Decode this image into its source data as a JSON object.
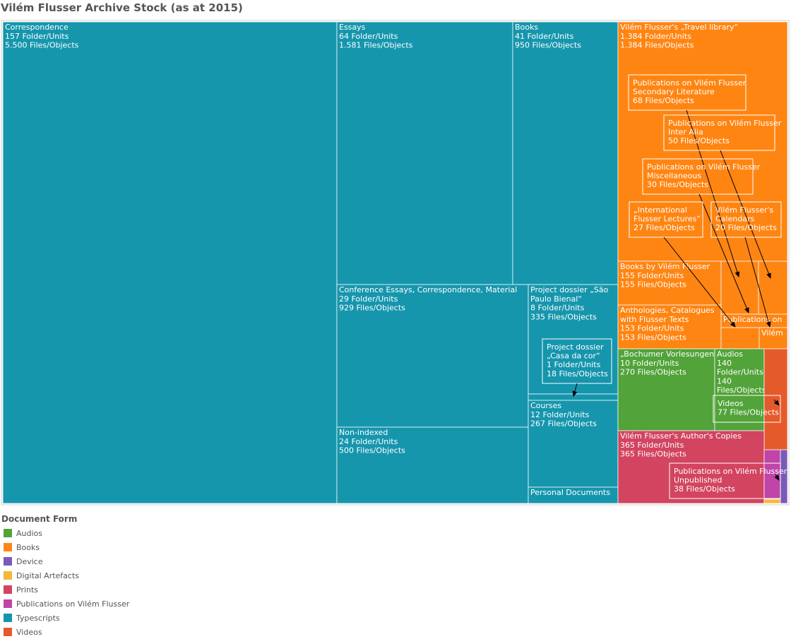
{
  "chart_data": {
    "type": "treemap",
    "title": "Vilém Flusser Archive Stock (as at 2015)",
    "legend": {
      "title": "Document Form",
      "placement": "bottom-left",
      "items": [
        {
          "name": "Audios",
          "color": "#52A33A"
        },
        {
          "name": "Books",
          "color": "#FF8513"
        },
        {
          "name": "Device",
          "color": "#7A5AB8"
        },
        {
          "name": "Digital Artefacts",
          "color": "#F3B83C"
        },
        {
          "name": "Prints",
          "color": "#D24460"
        },
        {
          "name": "Publications on Vilém Flusser",
          "color": "#C045A8"
        },
        {
          "name": "Typescripts",
          "color": "#1696AD"
        },
        {
          "name": "Videos",
          "color": "#E55A2B"
        }
      ]
    },
    "nodes": [
      {
        "id": "correspondence",
        "category": "Typescripts",
        "lines": [
          "Correspondence",
          "157 Folder/Units",
          "5.500 Files/Objects"
        ]
      },
      {
        "id": "essays",
        "category": "Typescripts",
        "lines": [
          "Essays",
          "64 Folder/Units",
          "1.581 Files/Objects"
        ]
      },
      {
        "id": "books-ts",
        "category": "Typescripts",
        "lines": [
          "Books",
          "41 Folder/Units",
          "950 Files/Objects"
        ]
      },
      {
        "id": "conference",
        "category": "Typescripts",
        "lines": [
          "Conference Essays, Correspondence, Material",
          "29 Folder/Units",
          "929 Files/Objects"
        ]
      },
      {
        "id": "sao-paulo",
        "category": "Typescripts",
        "lines": [
          "Project dossier „São",
          "Paulo Bienal“",
          "8 Folder/Units",
          "335 Files/Objects"
        ]
      },
      {
        "id": "casa-da-cor",
        "category": "Typescripts",
        "lines": []
      },
      {
        "id": "non-indexed",
        "category": "Typescripts",
        "lines": [
          "Non-indexed",
          "24 Folder/Units",
          "500 Files/Objects"
        ]
      },
      {
        "id": "courses",
        "category": "Typescripts",
        "lines": [
          "Courses",
          "12 Folder/Units",
          "267 Files/Objects"
        ]
      },
      {
        "id": "personal-docs",
        "category": "Typescripts",
        "lines": [
          "Personal Documents"
        ]
      },
      {
        "id": "travel-library",
        "category": "Books",
        "lines": [
          "Vilém Flusser's „Travel library“",
          "1.384 Folder/Units",
          "1.384 Files/Objects"
        ]
      },
      {
        "id": "books-by",
        "category": "Books",
        "lines": [
          "Books by Vilém Flusser",
          "155 Folder/Units",
          "155 Files/Objects"
        ]
      },
      {
        "id": "books-sm1",
        "category": "Books",
        "lines": []
      },
      {
        "id": "books-sm2",
        "category": "Books",
        "lines": []
      },
      {
        "id": "anthologies",
        "category": "Books",
        "lines": [
          "Anthologies, Catalogues",
          "with Flusser Texts",
          "153 Folder/Units",
          "153 Files/Objects"
        ]
      },
      {
        "id": "publications-on",
        "category": "Books",
        "lines": [
          "Publications on"
        ]
      },
      {
        "id": "books-sm3",
        "category": "Books",
        "lines": []
      },
      {
        "id": "books-sm4",
        "category": "Books",
        "lines": []
      },
      {
        "id": "vilem-small",
        "category": "Books",
        "lines": [
          "Vilém"
        ]
      },
      {
        "id": "bochumer",
        "category": "Audios",
        "lines": [
          "„Bochumer Vorlesungen“",
          "10 Folder/Units",
          "270 Files/Objects"
        ]
      },
      {
        "id": "audios",
        "category": "Audios",
        "lines": [
          "Audios",
          "140",
          "Folder/Units",
          "140",
          "Files/Objects"
        ]
      },
      {
        "id": "videos-bar",
        "category": "Videos",
        "lines": []
      },
      {
        "id": "authors-copies",
        "category": "Prints",
        "lines": [
          "Vilém Flusser's Author's Copies",
          "365 Folder/Units",
          "365 Files/Objects"
        ]
      },
      {
        "id": "pub-unpublished",
        "category": "Publications on Vilém Flusser",
        "lines": []
      },
      {
        "id": "digital",
        "category": "Digital Artefacts",
        "lines": []
      },
      {
        "id": "device",
        "category": "Device",
        "lines": []
      }
    ],
    "callouts": [
      {
        "id": "secondary",
        "category": "Books",
        "target": "books-sm1",
        "lines": [
          "Publications on Vilém Flusser",
          "Secondary Literature",
          "68 Files/Objects"
        ]
      },
      {
        "id": "inter-alia",
        "category": "Books",
        "target": "vilem-small",
        "lines": [
          "Publications on Vilém Flusser",
          "Inter Alia",
          "50 Files/Objects"
        ]
      },
      {
        "id": "misc",
        "category": "Books",
        "target": "publications-on",
        "lines": [
          "Publications on Vilém Flusser",
          "Miscellaneous",
          "30 Files/Objects"
        ]
      },
      {
        "id": "lectures",
        "category": "Books",
        "target": "books-sm3",
        "lines": [
          "„International",
          "Flusser Lectures“",
          "27 Files/Objects"
        ]
      },
      {
        "id": "calendars",
        "category": "Books",
        "target": "books-sm2",
        "lines": [
          "Vilém Flusser's",
          "Calendars",
          "20 Files/Objects"
        ]
      },
      {
        "id": "casa",
        "category": "Typescripts",
        "target": "casa-da-cor",
        "lines": [
          "Project dossier",
          "„Casa da cor“",
          "1 Folder/Units",
          "18 Files/Objects"
        ]
      },
      {
        "id": "videos",
        "category": "Audios",
        "target": "videos-bar",
        "lines": [
          "Videos",
          "77 Files/Objects"
        ]
      },
      {
        "id": "unpublished",
        "category": "Prints",
        "target": "pub-unpublished",
        "lines": [
          "Publications on Vilém Flusser",
          "Unpublished",
          "38 Files/Objects"
        ]
      }
    ]
  }
}
